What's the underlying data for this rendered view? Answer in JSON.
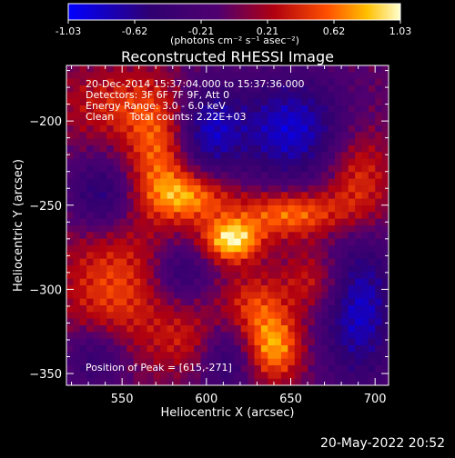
{
  "chart_data": {
    "type": "heatmap",
    "title": "Reconstructed RHESSI Image",
    "xlabel": "Heliocentric X (arcsec)",
    "ylabel": "Heliocentric Y (arcsec)",
    "xlim": [
      517,
      708
    ],
    "ylim": [
      -357,
      -167
    ],
    "xticks": [
      550,
      600,
      650,
      700
    ],
    "yticks": [
      -200,
      -250,
      -300,
      -350
    ],
    "colorbar": {
      "range": [
        -1.03,
        1.03
      ],
      "ticks": [
        "-1.03",
        "-0.62",
        "-0.21",
        "0.21",
        "0.62",
        "1.03"
      ],
      "units_label": "(photons cm⁻² s⁻¹ asec⁻²)"
    },
    "annotations": [
      "20-Dec-2014 15:37:04.000 to 15:37:36.000",
      "Detectors: 3F 6F 7F 9F, Att 0",
      "Energy Range: 3.0 - 6.0 keV",
      "Clean     Total counts: 2.22E+03"
    ],
    "peak_label": "Position of Peak = [615,-271]",
    "peak": {
      "x": 615,
      "y": -271,
      "value": 1.03
    },
    "intensity_features": [
      {
        "x": 615,
        "y": -271,
        "amp": 1.0,
        "sx": 12,
        "sy": 9
      },
      {
        "x": 590,
        "y": -245,
        "amp": 0.75,
        "sx": 18,
        "sy": 11
      },
      {
        "x": 572,
        "y": -220,
        "amp": 0.6,
        "sx": 14,
        "sy": 20
      },
      {
        "x": 650,
        "y": -255,
        "amp": 0.72,
        "sx": 22,
        "sy": 10
      },
      {
        "x": 690,
        "y": -235,
        "amp": 0.55,
        "sx": 14,
        "sy": 22
      },
      {
        "x": 640,
        "y": -335,
        "amp": 0.78,
        "sx": 12,
        "sy": 14
      },
      {
        "x": 628,
        "y": -310,
        "amp": 0.5,
        "sx": 14,
        "sy": 14
      },
      {
        "x": 545,
        "y": -300,
        "amp": 0.55,
        "sx": 22,
        "sy": 32
      },
      {
        "x": 552,
        "y": -190,
        "amp": 0.45,
        "sx": 28,
        "sy": 16
      },
      {
        "x": 665,
        "y": -295,
        "amp": 0.45,
        "sx": 14,
        "sy": 14
      },
      {
        "x": 590,
        "y": -330,
        "amp": 0.35,
        "sx": 16,
        "sy": 14
      },
      {
        "x": 600,
        "y": -205,
        "amp": -0.75,
        "sx": 14,
        "sy": 20
      },
      {
        "x": 650,
        "y": -205,
        "amp": -0.8,
        "sx": 24,
        "sy": 22
      },
      {
        "x": 690,
        "y": -310,
        "amp": -0.8,
        "sx": 16,
        "sy": 32
      },
      {
        "x": 538,
        "y": -245,
        "amp": -0.6,
        "sx": 14,
        "sy": 16
      },
      {
        "x": 535,
        "y": -340,
        "amp": -0.55,
        "sx": 14,
        "sy": 14
      },
      {
        "x": 585,
        "y": -290,
        "amp": -0.45,
        "sx": 12,
        "sy": 12
      },
      {
        "x": 612,
        "y": -340,
        "amp": -0.5,
        "sx": 12,
        "sy": 16
      }
    ]
  },
  "footer": {
    "timestamp": "20-May-2022 20:52"
  }
}
